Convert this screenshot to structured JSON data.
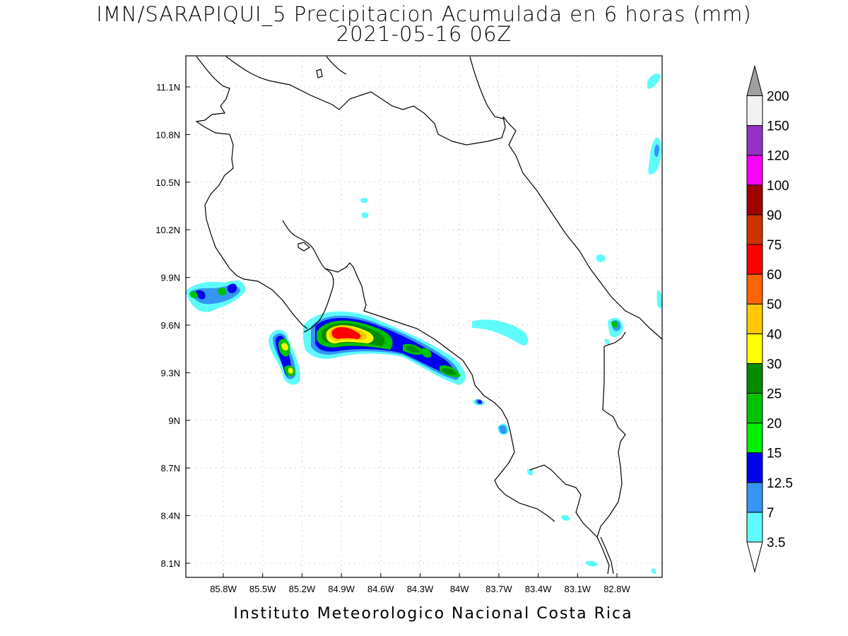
{
  "title": {
    "line1": "IMN/SARAPIQUI_5 Precipitacion Acumulada en 6 horas (mm)",
    "line2": "2021-05-16 06Z"
  },
  "footer": "Instituto Meteorologico Nacional Costa Rica",
  "map": {
    "lon_ticks": [
      "85.8W",
      "85.5W",
      "85.2W",
      "84.9W",
      "84.6W",
      "84.3W",
      "84W",
      "83.7W",
      "83.4W",
      "83.1W",
      "82.8W"
    ],
    "lat_ticks": [
      "11.1N",
      "10.8N",
      "10.5N",
      "10.2N",
      "9.9N",
      "9.6N",
      "9.3N",
      "9N",
      "8.7N",
      "8.4N",
      "8.1N"
    ],
    "grid": true
  },
  "colorbar": {
    "labels": [
      "3.5",
      "7",
      "12.5",
      "15",
      "20",
      "25",
      "30",
      "40",
      "50",
      "60",
      "75",
      "90",
      "100",
      "120",
      "150",
      "200"
    ],
    "colors": [
      "#5ffbfb",
      "#3596f6",
      "#0000f0",
      "#00f000",
      "#00c200",
      "#008c00",
      "#ffff00",
      "#ffc800",
      "#ff6400",
      "#ff0000",
      "#cd3200",
      "#a00000",
      "#ff00ff",
      "#9632c8",
      "#f2f2f2",
      "#a0a0a0"
    ]
  }
}
